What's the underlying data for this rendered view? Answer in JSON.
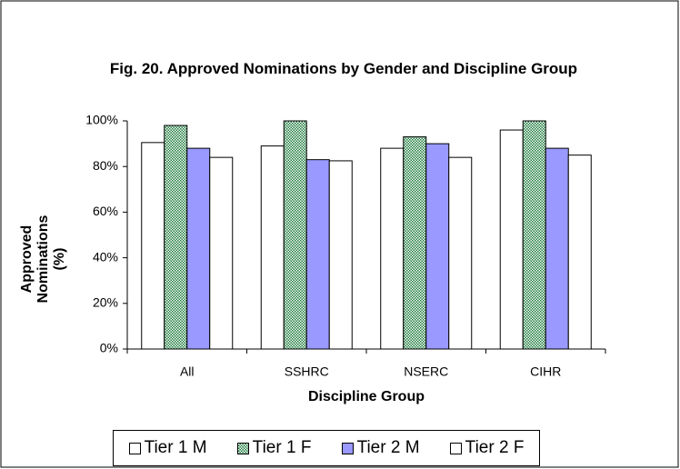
{
  "chart_data": {
    "type": "bar",
    "title": "Fig. 20.  Approved Nominations by Gender and Discipline Group",
    "x_label": "Discipline Group",
    "y_label": "Approved Nominations (%)",
    "categories": [
      "All",
      "SSHRC",
      "NSERC",
      "CIHR"
    ],
    "series": [
      {
        "name": "Tier 1 M",
        "color": "#ffffff",
        "values": [
          90.5,
          89,
          88,
          96
        ]
      },
      {
        "name": "Tier 1 F",
        "color": "#1a7a3a",
        "pattern": "checker",
        "values": [
          98,
          100,
          93,
          100
        ]
      },
      {
        "name": "Tier 2 M",
        "color": "#9999ff",
        "values": [
          88,
          83,
          90,
          88
        ]
      },
      {
        "name": "Tier 2 F",
        "color": "#ffffff",
        "values": [
          84,
          82.5,
          84,
          85
        ]
      }
    ],
    "ylim": [
      0,
      100
    ],
    "yticks": [
      {
        "value": 0,
        "label": "0%"
      },
      {
        "value": 20,
        "label": "20%"
      },
      {
        "value": 40,
        "label": "40%"
      },
      {
        "value": 60,
        "label": "60%"
      },
      {
        "value": 80,
        "label": "80%"
      },
      {
        "value": 100,
        "label": "100%"
      }
    ],
    "grid": false,
    "legend": "bottom"
  }
}
